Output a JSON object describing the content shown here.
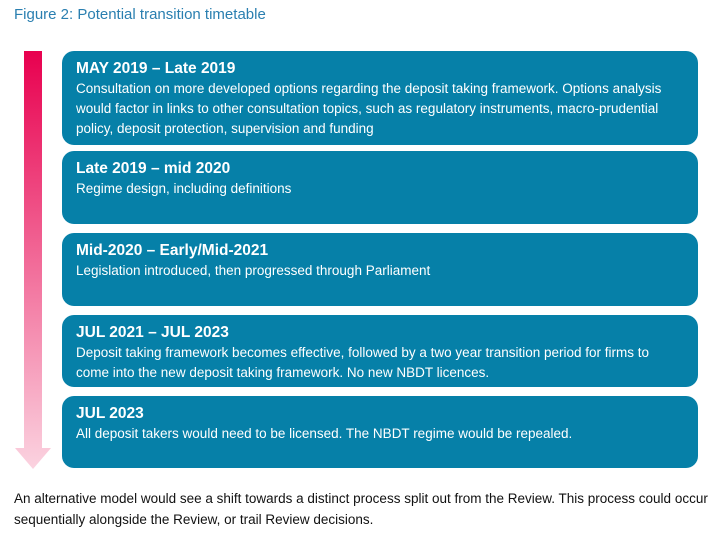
{
  "title": "Figure 2: Potential transition timetable",
  "colors": {
    "box": "#0680a8",
    "arrow_top": "#e8004f",
    "arrow_bottom": "#fbd3e0",
    "title": "#2a7fb0"
  },
  "stages": [
    {
      "period": "MAY 2019 – Late 2019",
      "description": "Consultation on more developed options regarding the deposit taking framework. Options analysis would factor in links to other consultation topics, such as regulatory instruments, macro-prudential policy, deposit protection, supervision and funding"
    },
    {
      "period": "Late 2019 – mid 2020",
      "description": "Regime design, including definitions"
    },
    {
      "period": "Mid-2020 – Early/Mid-2021",
      "description": "Legislation introduced, then progressed through Parliament"
    },
    {
      "period": "JUL 2021 – JUL 2023",
      "description": "Deposit taking framework becomes effective, followed by a two year transition period for firms to come into the new deposit taking framework.  No new NBDT licences."
    },
    {
      "period": "JUL 2023",
      "description": "All deposit takers would need to be licensed.  The NBDT regime would be repealed."
    }
  ],
  "footer": "An alternative model would see a shift towards a distinct process split out from the Review.  This process could occur sequentially alongside the Review, or trail Review decisions."
}
